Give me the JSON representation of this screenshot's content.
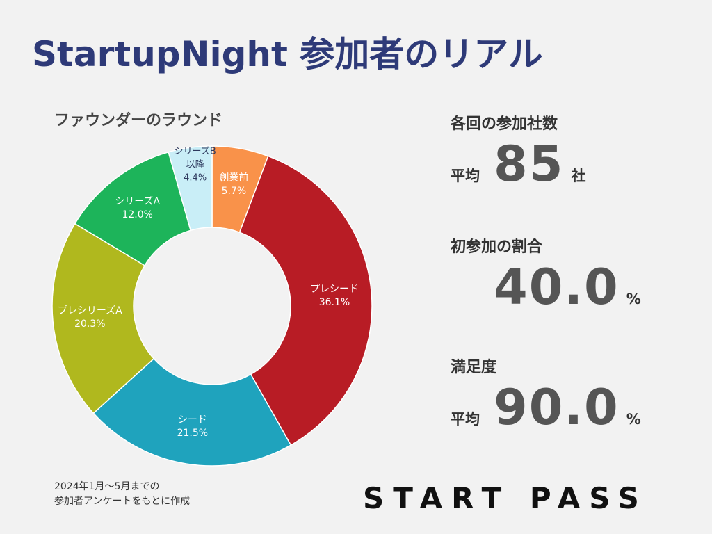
{
  "title": "StartupNight 参加者のリアル",
  "chart_data": {
    "type": "donut",
    "title": "ファウンダーのラウンド",
    "categories": [
      "創業前",
      "プレシード",
      "シード",
      "プレシリーズA",
      "シリーズA",
      "シリーズB以降"
    ],
    "values": [
      5.7,
      36.1,
      21.5,
      20.3,
      12.0,
      4.4
    ],
    "value_labels": [
      "5.7%",
      "36.1%",
      "21.5%",
      "20.3%",
      "12.0%",
      "4.4%"
    ],
    "colors": [
      "#f9924a",
      "#b81c25",
      "#1fa3bd",
      "#b0b81e",
      "#1db45a",
      "#c9eef7"
    ]
  },
  "stats": [
    {
      "heading": "各回の参加社数",
      "prefix": "平均",
      "value": "85",
      "unit": "社"
    },
    {
      "heading": "初参加の割合",
      "value": "40.0",
      "unit": "%"
    },
    {
      "heading": "満足度",
      "prefix": "平均",
      "value": "90.0",
      "unit": "%"
    }
  ],
  "footnote": [
    "2024年1月～5月までの",
    "参加者アンケートをもとに作成"
  ],
  "logo": "START PASS"
}
